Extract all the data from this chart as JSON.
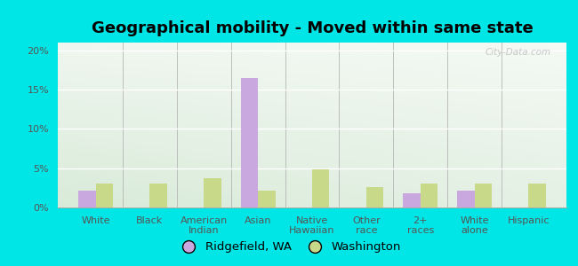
{
  "title": "Geographical mobility - Moved within same state",
  "categories": [
    "White",
    "Black",
    "American\nIndian",
    "Asian",
    "Native\nHawaiian",
    "Other\nrace",
    "2+\nraces",
    "White\nalone",
    "Hispanic"
  ],
  "ridgefield_values": [
    2.2,
    0,
    0,
    16.5,
    0,
    0,
    1.8,
    2.2,
    0
  ],
  "washington_values": [
    3.0,
    3.1,
    3.7,
    2.2,
    4.8,
    2.6,
    3.1,
    3.0,
    3.0
  ],
  "ridgefield_color": "#c9a8e0",
  "washington_color": "#c8d98a",
  "ylim": [
    0,
    21
  ],
  "yticks": [
    0,
    5,
    10,
    15,
    20
  ],
  "yticklabels": [
    "0%",
    "5%",
    "10%",
    "15%",
    "20%"
  ],
  "gradient_top_left": "#b2e8c8",
  "gradient_top_right": "#f0f8f0",
  "gradient_bottom_left": "#c8f0d8",
  "gradient_bottom_right": "#ffffff",
  "background_color_fig": "#00e5e5",
  "legend_ridgefield": "Ridgefield, WA",
  "legend_washington": "Washington",
  "watermark": "City-Data.com",
  "title_fontsize": 13,
  "tick_fontsize": 8,
  "legend_fontsize": 9.5
}
